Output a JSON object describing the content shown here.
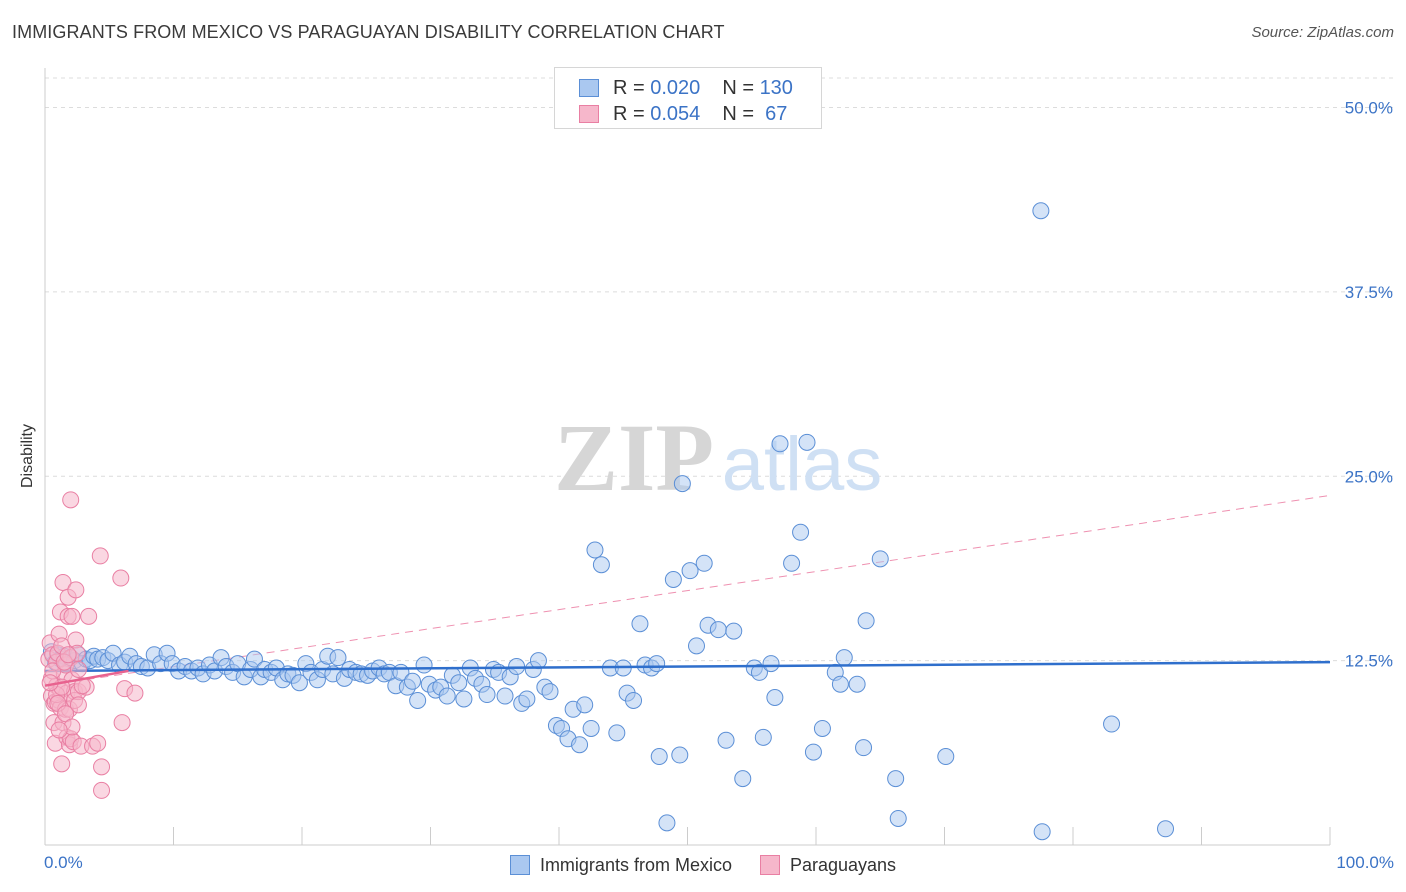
{
  "title": "IMMIGRANTS FROM MEXICO VS PARAGUAYAN DISABILITY CORRELATION CHART",
  "source": "Source: ZipAtlas.com",
  "watermark": {
    "zip": "ZIP",
    "atlas": "atlas"
  },
  "legend_top": {
    "rows": [
      {
        "r_label": "R = ",
        "r_value": "0.020",
        "n_label": "N = ",
        "n_value": "130"
      },
      {
        "r_label": "R = ",
        "r_value": "0.054",
        "n_label": "N = ",
        "n_value": " 67"
      }
    ]
  },
  "legend_bottom": [
    "Immigrants from Mexico",
    "Paraguayans"
  ],
  "colors": {
    "blue_fill": "#aac8f0",
    "blue_stroke": "#5b8fd6",
    "blue_line": "#2f6fcc",
    "pink_fill": "#f6b7cb",
    "pink_stroke": "#e97fa3",
    "pink_line": "#e8628f",
    "tick_text": "#3b73c6",
    "grid": "#dcdcdc"
  },
  "chart_data": {
    "type": "scatter",
    "title": "IMMIGRANTS FROM MEXICO VS PARAGUAYAN DISABILITY CORRELATION CHART",
    "xlabel": "",
    "ylabel": "Disability",
    "xlim": [
      0,
      100
    ],
    "ylim": [
      0,
      52
    ],
    "x_tick_labels": [
      "0.0%",
      "100.0%"
    ],
    "y_ticks": [
      12.5,
      25.0,
      37.5,
      50.0
    ],
    "y_tick_labels": [
      "12.5%",
      "25.0%",
      "37.5%",
      "50.0%"
    ],
    "series": [
      {
        "name": "Immigrants from Mexico",
        "R": 0.02,
        "N": 130,
        "trend": {
          "x": [
            0,
            100
          ],
          "y": [
            11.8,
            12.4
          ],
          "style": "solid"
        },
        "points": [
          [
            0.5,
            13.1
          ],
          [
            0.8,
            12.4
          ],
          [
            1.0,
            12.9
          ],
          [
            1.2,
            12.6
          ],
          [
            1.5,
            12.8
          ],
          [
            1.7,
            12.3
          ],
          [
            2.0,
            12.7
          ],
          [
            2.3,
            12.5
          ],
          [
            2.6,
            12.9
          ],
          [
            2.9,
            12.3
          ],
          [
            3.2,
            12.6
          ],
          [
            3.5,
            12.5
          ],
          [
            3.8,
            12.8
          ],
          [
            4.1,
            12.6
          ],
          [
            4.5,
            12.7
          ],
          [
            4.9,
            12.5
          ],
          [
            5.3,
            13.0
          ],
          [
            5.8,
            12.2
          ],
          [
            6.2,
            12.4
          ],
          [
            6.6,
            12.8
          ],
          [
            7.1,
            12.3
          ],
          [
            7.5,
            12.1
          ],
          [
            8.0,
            12.0
          ],
          [
            8.5,
            12.9
          ],
          [
            9.0,
            12.3
          ],
          [
            9.5,
            13.0
          ],
          [
            9.9,
            12.3
          ],
          [
            10.4,
            11.8
          ],
          [
            10.9,
            12.1
          ],
          [
            11.4,
            11.8
          ],
          [
            11.9,
            12.0
          ],
          [
            12.3,
            11.6
          ],
          [
            12.8,
            12.2
          ],
          [
            13.2,
            11.8
          ],
          [
            13.7,
            12.7
          ],
          [
            14.1,
            12.1
          ],
          [
            14.6,
            11.7
          ],
          [
            15.0,
            12.3
          ],
          [
            15.5,
            11.4
          ],
          [
            16.0,
            11.9
          ],
          [
            16.3,
            12.6
          ],
          [
            16.8,
            11.4
          ],
          [
            17.1,
            11.9
          ],
          [
            17.6,
            11.7
          ],
          [
            18.0,
            12.0
          ],
          [
            18.5,
            11.2
          ],
          [
            18.9,
            11.6
          ],
          [
            19.3,
            11.5
          ],
          [
            19.8,
            11.0
          ],
          [
            20.3,
            12.3
          ],
          [
            20.7,
            11.7
          ],
          [
            21.2,
            11.2
          ],
          [
            21.6,
            11.9
          ],
          [
            22.0,
            12.8
          ],
          [
            22.4,
            11.6
          ],
          [
            22.8,
            12.7
          ],
          [
            23.3,
            11.3
          ],
          [
            23.7,
            11.9
          ],
          [
            24.2,
            11.7
          ],
          [
            24.6,
            11.6
          ],
          [
            25.1,
            11.5
          ],
          [
            25.5,
            11.8
          ],
          [
            26.0,
            12.0
          ],
          [
            26.4,
            11.6
          ],
          [
            26.8,
            11.7
          ],
          [
            27.3,
            10.8
          ],
          [
            27.7,
            11.7
          ],
          [
            28.2,
            10.7
          ],
          [
            28.6,
            11.1
          ],
          [
            29.0,
            9.8
          ],
          [
            29.5,
            12.2
          ],
          [
            29.9,
            10.9
          ],
          [
            30.4,
            10.5
          ],
          [
            30.8,
            10.7
          ],
          [
            31.3,
            10.1
          ],
          [
            31.7,
            11.5
          ],
          [
            32.2,
            11.0
          ],
          [
            32.6,
            9.9
          ],
          [
            33.1,
            12.0
          ],
          [
            33.5,
            11.3
          ],
          [
            34.0,
            10.9
          ],
          [
            34.4,
            10.2
          ],
          [
            34.9,
            11.9
          ],
          [
            35.3,
            11.7
          ],
          [
            35.8,
            10.1
          ],
          [
            36.2,
            11.4
          ],
          [
            36.7,
            12.1
          ],
          [
            37.1,
            9.6
          ],
          [
            37.5,
            9.9
          ],
          [
            38.0,
            11.9
          ],
          [
            38.4,
            12.5
          ],
          [
            38.9,
            10.7
          ],
          [
            39.3,
            10.4
          ],
          [
            39.8,
            8.1
          ],
          [
            40.2,
            7.9
          ],
          [
            40.7,
            7.2
          ],
          [
            41.1,
            9.2
          ],
          [
            41.6,
            6.8
          ],
          [
            42.0,
            9.5
          ],
          [
            42.5,
            7.9
          ],
          [
            42.8,
            20.0
          ],
          [
            43.3,
            19.0
          ],
          [
            44.0,
            12.0
          ],
          [
            44.5,
            7.6
          ],
          [
            45.0,
            12.0
          ],
          [
            45.3,
            10.3
          ],
          [
            45.8,
            9.8
          ],
          [
            46.3,
            15.0
          ],
          [
            46.7,
            12.2
          ],
          [
            47.2,
            12.0
          ],
          [
            47.6,
            12.3
          ],
          [
            47.8,
            6.0
          ],
          [
            48.4,
            1.5
          ],
          [
            48.9,
            18.0
          ],
          [
            49.4,
            6.1
          ],
          [
            49.6,
            24.5
          ],
          [
            50.2,
            18.6
          ],
          [
            50.7,
            13.5
          ],
          [
            51.3,
            19.1
          ],
          [
            51.6,
            14.9
          ],
          [
            52.4,
            14.6
          ],
          [
            53.0,
            7.1
          ],
          [
            53.6,
            14.5
          ],
          [
            54.3,
            4.5
          ],
          [
            55.2,
            12.0
          ],
          [
            55.6,
            11.7
          ],
          [
            55.9,
            7.3
          ],
          [
            56.5,
            12.3
          ],
          [
            56.8,
            10.0
          ],
          [
            57.2,
            27.2
          ]
        ],
        "points_extra": [
          [
            59.3,
            27.3
          ],
          [
            58.8,
            21.2
          ],
          [
            58.1,
            19.1
          ],
          [
            59.8,
            6.3
          ],
          [
            60.5,
            7.9
          ],
          [
            61.5,
            11.7
          ],
          [
            61.9,
            10.9
          ],
          [
            62.2,
            12.7
          ],
          [
            63.2,
            10.9
          ],
          [
            63.7,
            6.6
          ],
          [
            63.9,
            15.2
          ],
          [
            65.0,
            19.4
          ],
          [
            66.2,
            4.5
          ],
          [
            66.4,
            1.8
          ],
          [
            70.1,
            6.0
          ],
          [
            77.5,
            43.0
          ],
          [
            77.6,
            0.9
          ],
          [
            83.0,
            8.2
          ],
          [
            87.2,
            1.1
          ]
        ]
      },
      {
        "name": "Paraguayans",
        "R": 0.054,
        "N": 67,
        "trend_solid": {
          "x": [
            0,
            6.5
          ],
          "y": [
            10.8,
            11.8
          ]
        },
        "trend_dashed": {
          "x": [
            0,
            100
          ],
          "y": [
            10.8,
            23.7
          ]
        },
        "points": [
          [
            0.3,
            12.6
          ],
          [
            0.4,
            13.7
          ],
          [
            0.5,
            10.1
          ],
          [
            0.5,
            11.3
          ],
          [
            0.6,
            12.9
          ],
          [
            0.7,
            9.6
          ],
          [
            0.7,
            8.3
          ],
          [
            0.8,
            9.7
          ],
          [
            0.8,
            6.9
          ],
          [
            0.9,
            10.8
          ],
          [
            0.9,
            12.4
          ],
          [
            1.0,
            13.0
          ],
          [
            1.1,
            9.8
          ],
          [
            1.1,
            14.3
          ],
          [
            1.2,
            15.8
          ],
          [
            1.2,
            10.5
          ],
          [
            1.2,
            9.3
          ],
          [
            1.3,
            5.5
          ],
          [
            1.3,
            13.5
          ],
          [
            1.4,
            17.8
          ],
          [
            1.4,
            8.3
          ],
          [
            1.5,
            11.6
          ],
          [
            1.6,
            9.2
          ],
          [
            1.6,
            12.2
          ],
          [
            1.7,
            10.3
          ],
          [
            1.7,
            7.3
          ],
          [
            1.8,
            16.8
          ],
          [
            1.8,
            15.5
          ],
          [
            1.9,
            9.2
          ],
          [
            1.9,
            6.8
          ],
          [
            2.0,
            23.4
          ],
          [
            2.0,
            12.7
          ],
          [
            2.0,
            7.2
          ],
          [
            2.1,
            15.5
          ],
          [
            2.1,
            11.2
          ],
          [
            2.2,
            7.0
          ],
          [
            2.3,
            10.4
          ],
          [
            2.3,
            9.8
          ],
          [
            2.4,
            17.3
          ],
          [
            2.4,
            13.9
          ],
          [
            2.5,
            13.0
          ],
          [
            2.6,
            10.4
          ],
          [
            2.6,
            9.5
          ],
          [
            2.8,
            6.7
          ],
          [
            3.2,
            10.7
          ],
          [
            3.4,
            15.5
          ],
          [
            3.7,
            6.7
          ],
          [
            4.1,
            6.9
          ],
          [
            4.3,
            19.6
          ],
          [
            4.4,
            5.3
          ],
          [
            4.4,
            3.7
          ],
          [
            5.9,
            18.1
          ],
          [
            6.0,
            8.3
          ],
          [
            6.2,
            10.6
          ],
          [
            7.0,
            10.3
          ],
          [
            0.6,
            11.8
          ],
          [
            0.9,
            10.2
          ],
          [
            1.0,
            9.6
          ],
          [
            1.3,
            10.7
          ],
          [
            1.5,
            12.4
          ],
          [
            1.6,
            8.9
          ],
          [
            1.8,
            12.9
          ],
          [
            2.1,
            8.0
          ],
          [
            2.6,
            11.9
          ],
          [
            2.9,
            10.8
          ],
          [
            1.1,
            7.8
          ],
          [
            0.4,
            11.0
          ]
        ]
      }
    ]
  }
}
